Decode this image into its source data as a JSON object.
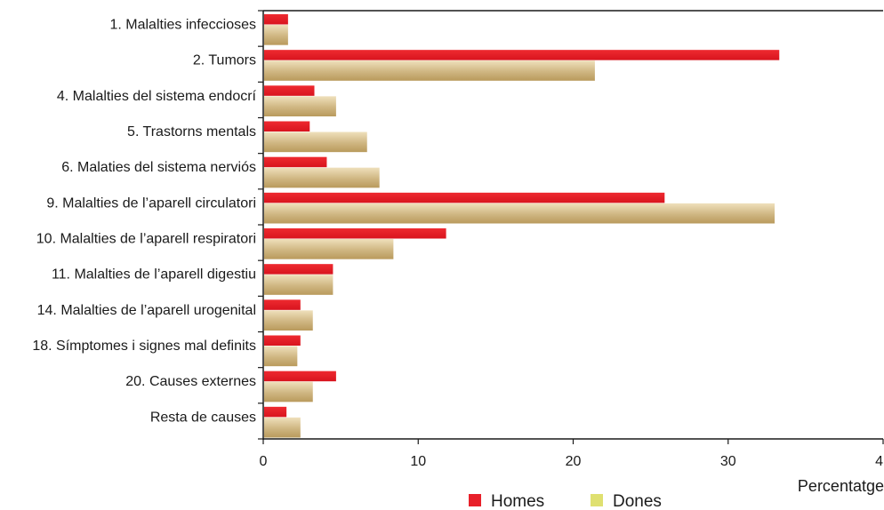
{
  "chart_data": {
    "type": "bar",
    "orientation": "horizontal",
    "categories": [
      "1. Malalties infeccioses",
      "2. Tumors",
      "4. Malalties del sistema endocrí",
      "5. Trastorns mentals",
      "6. Malaties del sistema  nerviós",
      "9. Malalties de l’aparell circulatori",
      "10. Malalties de l’aparell respiratori",
      "11. Malalties de l’aparell digestiu",
      "14. Malalties de l’aparell urogenital",
      "18. Símptomes i signes mal definits",
      "20. Causes externes",
      "Resta de causes"
    ],
    "series": [
      {
        "name": "Homes",
        "color": "#e8202a",
        "values": [
          1.6,
          33.3,
          3.3,
          3.0,
          4.1,
          25.9,
          11.8,
          4.5,
          2.4,
          2.4,
          4.7,
          1.5
        ]
      },
      {
        "name": "Dones",
        "color": "#c8b07a",
        "values": [
          1.6,
          21.4,
          4.7,
          6.7,
          7.5,
          33.0,
          8.4,
          4.5,
          3.2,
          2.2,
          3.2,
          2.4
        ]
      }
    ],
    "xlabel": "Percentatge",
    "xlim": [
      0,
      40
    ],
    "xticks": [
      "0",
      "10",
      "20",
      "30",
      "4"
    ],
    "grid": false,
    "legend_position": "bottom"
  }
}
